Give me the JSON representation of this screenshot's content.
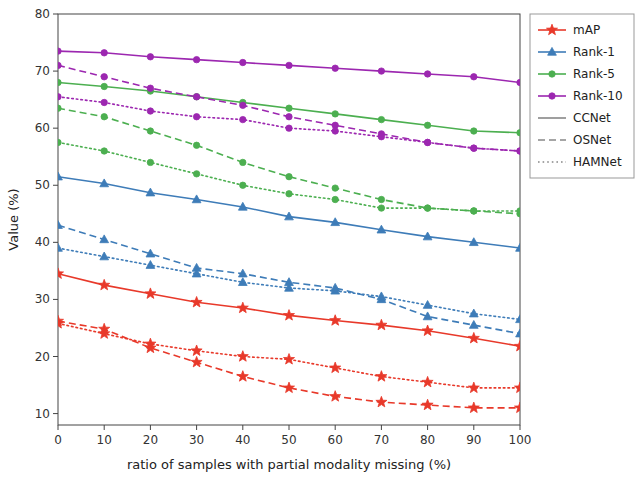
{
  "chart_data": {
    "type": "line",
    "x_label": "ratio of samples with partial modality missing (%)",
    "y_label": "Value (%)",
    "x": [
      0,
      10,
      20,
      30,
      40,
      50,
      60,
      70,
      80,
      90,
      100
    ],
    "xlim": [
      0,
      100
    ],
    "ylim": [
      8,
      80
    ],
    "xticks": [
      0,
      10,
      20,
      30,
      40,
      50,
      60,
      70,
      80,
      90,
      100
    ],
    "yticks": [
      10,
      20,
      30,
      40,
      50,
      60,
      70,
      80
    ],
    "grid": false,
    "legend": "upper right",
    "groups": [
      {
        "name": "CCNet",
        "color": "#888888",
        "line_style": "solid"
      },
      {
        "name": "OSNet",
        "color": "#888888",
        "line_style": "dashed"
      },
      {
        "name": "HAMNet",
        "color": "#888888",
        "line_style": "dotted"
      }
    ],
    "series": [
      {
        "name": "mAP",
        "group": "CCNet",
        "color": "#e8392a",
        "marker": "star",
        "line_style": "solid",
        "values": [
          34.5,
          32.5,
          31.0,
          29.5,
          28.5,
          27.2,
          26.3,
          25.5,
          24.5,
          23.2,
          21.8
        ]
      },
      {
        "name": "Rank-1",
        "group": "CCNet",
        "color": "#3e7cb8",
        "marker": "triangle",
        "line_style": "solid",
        "values": [
          51.5,
          50.3,
          48.7,
          47.5,
          46.2,
          44.5,
          43.5,
          42.2,
          41.0,
          40.0,
          39.0
        ]
      },
      {
        "name": "Rank-5",
        "group": "CCNet",
        "color": "#4caf50",
        "marker": "circle",
        "line_style": "solid",
        "values": [
          68.0,
          67.3,
          66.5,
          65.5,
          64.5,
          63.5,
          62.5,
          61.5,
          60.5,
          59.5,
          59.2
        ]
      },
      {
        "name": "Rank-10",
        "group": "CCNet",
        "color": "#9c27b0",
        "marker": "circle",
        "line_style": "solid",
        "values": [
          73.5,
          73.2,
          72.5,
          72.0,
          71.5,
          71.0,
          70.5,
          70.0,
          69.5,
          69.0,
          68.0
        ]
      },
      {
        "name": "mAP",
        "group": "OSNet",
        "color": "#e8392a",
        "marker": "star",
        "line_style": "dashed",
        "values": [
          26.2,
          24.8,
          21.5,
          19.0,
          16.5,
          14.5,
          13.0,
          12.0,
          11.5,
          11.0,
          11.0
        ]
      },
      {
        "name": "Rank-1",
        "group": "OSNet",
        "color": "#3e7cb8",
        "marker": "triangle",
        "line_style": "dashed",
        "values": [
          43.0,
          40.5,
          38.0,
          35.5,
          34.5,
          33.0,
          32.0,
          30.0,
          27.0,
          25.5,
          24.0
        ]
      },
      {
        "name": "Rank-5",
        "group": "OSNet",
        "color": "#4caf50",
        "marker": "circle",
        "line_style": "dashed",
        "values": [
          63.5,
          62.0,
          59.5,
          57.0,
          54.0,
          51.5,
          49.5,
          47.5,
          46.0,
          45.5,
          45.0
        ]
      },
      {
        "name": "Rank-10",
        "group": "OSNet",
        "color": "#9c27b0",
        "marker": "circle",
        "line_style": "dashed",
        "values": [
          71.0,
          69.0,
          67.0,
          65.5,
          64.0,
          62.0,
          60.5,
          59.0,
          57.5,
          56.5,
          56.0
        ]
      },
      {
        "name": "mAP",
        "group": "HAMNet",
        "color": "#e8392a",
        "marker": "star",
        "line_style": "dotted",
        "values": [
          25.8,
          24.0,
          22.2,
          21.0,
          20.0,
          19.5,
          18.0,
          16.5,
          15.5,
          14.5,
          14.5
        ]
      },
      {
        "name": "Rank-1",
        "group": "HAMNet",
        "color": "#3e7cb8",
        "marker": "triangle",
        "line_style": "dotted",
        "values": [
          39.0,
          37.5,
          36.0,
          34.5,
          33.0,
          32.0,
          31.5,
          30.5,
          29.0,
          27.5,
          26.5
        ]
      },
      {
        "name": "Rank-5",
        "group": "HAMNet",
        "color": "#4caf50",
        "marker": "circle",
        "line_style": "dotted",
        "values": [
          57.5,
          56.0,
          54.0,
          52.0,
          50.0,
          48.5,
          47.5,
          46.0,
          46.0,
          45.5,
          45.5
        ]
      },
      {
        "name": "Rank-10",
        "group": "HAMNet",
        "color": "#9c27b0",
        "marker": "circle",
        "line_style": "dotted",
        "values": [
          65.5,
          64.5,
          63.0,
          62.0,
          61.5,
          60.0,
          59.5,
          58.5,
          57.5,
          56.5,
          56.0
        ]
      }
    ]
  }
}
